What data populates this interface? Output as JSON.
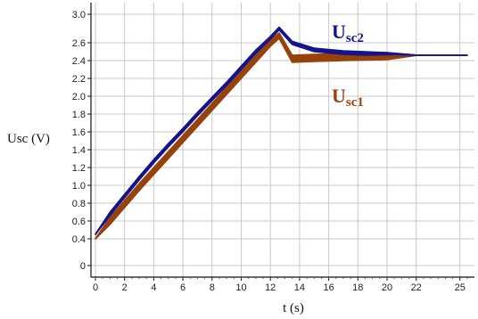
{
  "chart_data": {
    "type": "line",
    "title": "",
    "xlabel": "t (s)",
    "ylabel": "Usc (V)",
    "xlim": [
      0,
      26
    ],
    "ylim": [
      0,
      3.0
    ],
    "x_ticks": [
      0,
      2,
      4,
      6,
      8,
      10,
      12,
      14,
      16,
      18,
      20,
      22,
      25
    ],
    "y_tick_labels": [
      "0",
      "0.4",
      "0.6",
      "0.8",
      "1.0",
      "1.2",
      "1.4",
      "1.6",
      "1.8",
      "2.0",
      "2.2",
      "2.4",
      "2.6",
      "3.0"
    ],
    "grid": true,
    "series": [
      {
        "name": "Usc2",
        "label_main": "U",
        "label_sub": "sc2",
        "color": "#14148c",
        "x": [
          0,
          1,
          2,
          3,
          4,
          5,
          6,
          7,
          8,
          9,
          10,
          11,
          12,
          12.6,
          13.5,
          15,
          17,
          20,
          22,
          25.5
        ],
        "y": [
          0.45,
          0.68,
          0.88,
          1.08,
          1.27,
          1.45,
          1.62,
          1.8,
          1.97,
          2.14,
          2.32,
          2.5,
          2.67,
          2.8,
          2.6,
          2.52,
          2.49,
          2.47,
          2.46,
          2.46
        ],
        "band": 0.04
      },
      {
        "name": "Usc1",
        "label_main": "U",
        "label_sub": "sc1",
        "color": "#96420a",
        "x": [
          0,
          1,
          2,
          3,
          4,
          5,
          6,
          7,
          8,
          9,
          10,
          11,
          12,
          12.6,
          13.5,
          15,
          17,
          20,
          22,
          25.5
        ],
        "y": [
          0.4,
          0.6,
          0.79,
          0.98,
          1.16,
          1.34,
          1.52,
          1.7,
          1.88,
          2.06,
          2.24,
          2.42,
          2.6,
          2.7,
          2.42,
          2.43,
          2.44,
          2.45,
          2.46,
          2.46
        ],
        "band": 0.08
      }
    ]
  }
}
